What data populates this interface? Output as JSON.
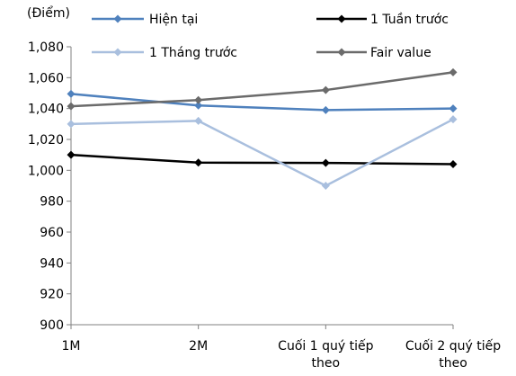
{
  "chart_data": {
    "type": "line",
    "ylabel": "(Điểm)",
    "ylim": [
      900,
      1080
    ],
    "ytick_step": 20,
    "yticks": [
      "900",
      "920",
      "940",
      "960",
      "980",
      "1,000",
      "1,020",
      "1,040",
      "1,060",
      "1,080"
    ],
    "categories": [
      "1M",
      "2M",
      "Cuối 1 quý tiếp theo",
      "Cuối 2 quý tiếp theo"
    ],
    "category_lines": [
      [
        "1M"
      ],
      [
        "2M"
      ],
      [
        "Cuối 1 quý tiếp",
        "theo"
      ],
      [
        "Cuối 2 quý tiếp",
        "theo"
      ]
    ],
    "grid": false,
    "legend_position": "top",
    "series": [
      {
        "name": "Hiện tại",
        "color": "#4f81bd",
        "values": [
          1049.5,
          1042,
          1039,
          1040
        ]
      },
      {
        "name": "1 Tuần trước",
        "color": "#000000",
        "values": [
          1010,
          1005,
          1004.8,
          1004
        ]
      },
      {
        "name": "1 Tháng trước",
        "color": "#a9bfde",
        "values": [
          1030,
          1032,
          990,
          1033
        ]
      },
      {
        "name": "Fair value",
        "color": "#6b6b6b",
        "values": [
          1041.5,
          1045.5,
          1052,
          1063.5
        ]
      }
    ]
  }
}
